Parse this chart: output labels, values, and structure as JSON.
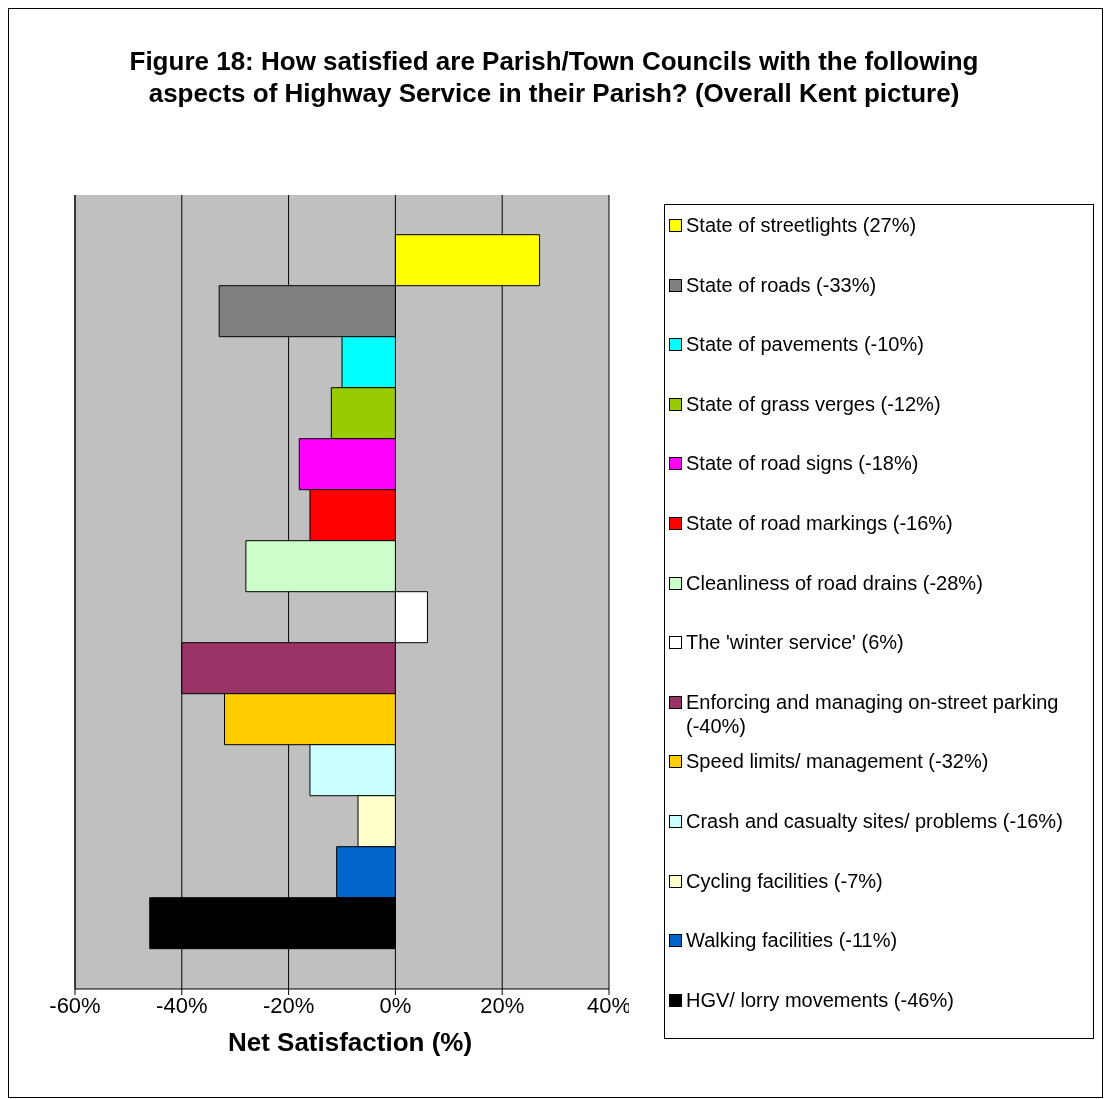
{
  "chart_data": {
    "type": "bar",
    "orientation": "horizontal",
    "title": "Figure 18: How satisfied are Parish/Town Councils with the following aspects of Highway Service in their Parish? (Overall Kent picture)",
    "xlabel": "Net Satisfaction (%)",
    "categories": [
      null
    ],
    "series": [
      {
        "name": "State of streetlights (27%)",
        "color": "#ffff00",
        "values": [
          27
        ]
      },
      {
        "name": "State of roads (-33%)",
        "color": "#808080",
        "values": [
          -33
        ]
      },
      {
        "name": "State of pavements (-10%)",
        "color": "#00ffff",
        "values": [
          -10
        ]
      },
      {
        "name": "State of grass verges (-12%)",
        "color": "#99cc00",
        "values": [
          -12
        ]
      },
      {
        "name": "State of road signs (-18%)",
        "color": "#ff00ff",
        "values": [
          -18
        ]
      },
      {
        "name": "State of road markings (-16%)",
        "color": "#ff0000",
        "values": [
          -16
        ]
      },
      {
        "name": "Cleanliness of road drains (-28%)",
        "color": "#ccffcc",
        "values": [
          -28
        ]
      },
      {
        "name": "The 'winter service' (6%)",
        "color": "#ffffff",
        "values": [
          6
        ]
      },
      {
        "name": "Enforcing and managing on-street parking (-40%)",
        "color": "#993366",
        "values": [
          -40
        ]
      },
      {
        "name": "Speed limits/ management (-32%)",
        "color": "#ffcc00",
        "values": [
          -32
        ]
      },
      {
        "name": "Crash and casualty sites/ problems  (-16%)",
        "color": "#ccffff",
        "values": [
          -16
        ]
      },
      {
        "name": "Cycling facilities (-7%)",
        "color": "#ffffcc",
        "values": [
          -7
        ]
      },
      {
        "name": "Walking facilities (-11%)",
        "color": "#0066cc",
        "values": [
          -11
        ]
      },
      {
        "name": "HGV/ lorry movements (-46%)",
        "color": "#000000",
        "values": [
          -46
        ]
      }
    ],
    "xlim": [
      -60,
      40
    ],
    "xticks": [
      {
        "value": -60,
        "label": "-60%"
      },
      {
        "value": -40,
        "label": "-40%"
      },
      {
        "value": -20,
        "label": "-20%"
      },
      {
        "value": 0,
        "label": "0%"
      },
      {
        "value": 20,
        "label": "20%"
      },
      {
        "value": 40,
        "label": "40%"
      }
    ],
    "grid": "x",
    "legend": "right",
    "tick_labels": "x"
  }
}
